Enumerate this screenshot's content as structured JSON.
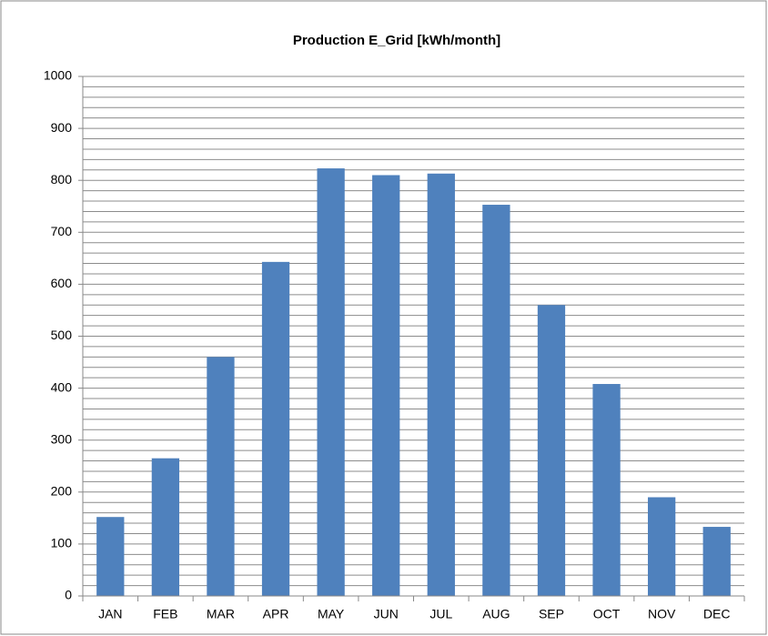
{
  "chart_data": {
    "type": "bar",
    "title": "Production E_Grid [kWh/month]",
    "categories": [
      "JAN",
      "FEB",
      "MAR",
      "APR",
      "MAY",
      "JUN",
      "JUL",
      "AUG",
      "SEP",
      "OCT",
      "NOV",
      "DEC"
    ],
    "values": [
      152,
      265,
      460,
      643,
      823,
      810,
      813,
      753,
      560,
      408,
      190,
      133
    ],
    "color": "#4f81bd",
    "ylim": [
      0,
      1000
    ],
    "yticks": [
      0,
      100,
      200,
      300,
      400,
      500,
      600,
      700,
      800,
      900,
      1000
    ],
    "yticks_minor": [
      20,
      40,
      60,
      80,
      120,
      140,
      160,
      180,
      220,
      240,
      260,
      280,
      320,
      340,
      360,
      380,
      420,
      440,
      460,
      480,
      520,
      540,
      560,
      580,
      620,
      640,
      660,
      680,
      720,
      740,
      760,
      780,
      820,
      840,
      860,
      880,
      920,
      940,
      960,
      980
    ],
    "grid": true
  }
}
